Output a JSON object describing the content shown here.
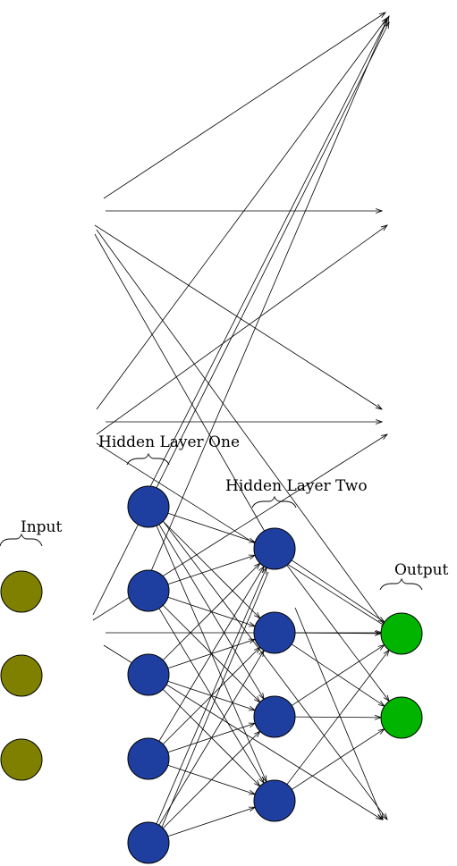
{
  "labels": {
    "input": "Input",
    "hidden_one": "Hidden Layer One",
    "hidden_two": "Hidden Layer Two",
    "output": "Output"
  },
  "colors": {
    "input": "#808000",
    "hidden": "#1f3fa0",
    "output": "#00b400",
    "edge": "#000000"
  },
  "layers": [
    {
      "name": "input",
      "count": 3
    },
    {
      "name": "hidden-one",
      "count": 5
    },
    {
      "name": "hidden-two",
      "count": 4
    },
    {
      "name": "output",
      "count": 2
    }
  ]
}
